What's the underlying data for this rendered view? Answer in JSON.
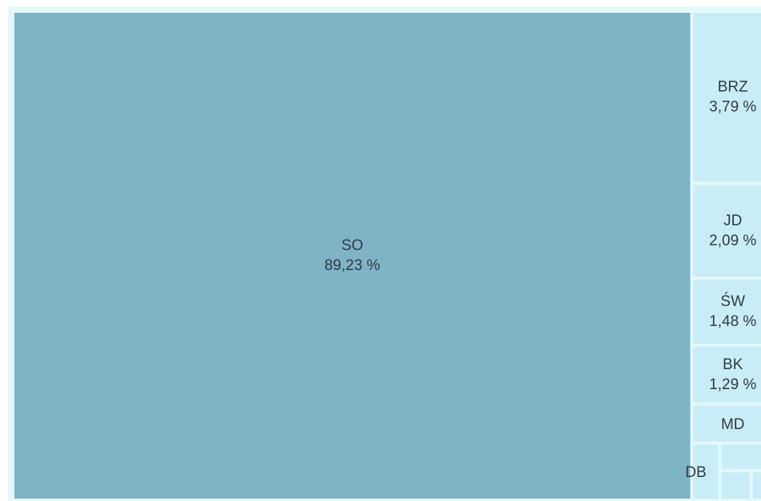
{
  "chart_data": {
    "type": "treemap",
    "categories": [
      "SO",
      "BRZ",
      "JD",
      "ŚW",
      "BK",
      "MD",
      "DB",
      null,
      null,
      null
    ],
    "values": [
      89.23,
      3.79,
      2.09,
      1.48,
      1.29,
      0.86,
      0.43,
      0.4,
      0.25,
      0.18
    ],
    "value_labels": [
      "89,23 %",
      "3,79 %",
      "2,09 %",
      "1,48 %",
      "1,29 %",
      null,
      null,
      null,
      null,
      null
    ],
    "colors": [
      "#7fb3c6",
      "#c9edf6",
      "#c9edf6",
      "#c9edf6",
      "#c9edf6",
      "#c9edf6",
      "#c9edf6",
      "#c9edf6",
      "#c9edf6",
      "#c9edf6"
    ]
  }
}
